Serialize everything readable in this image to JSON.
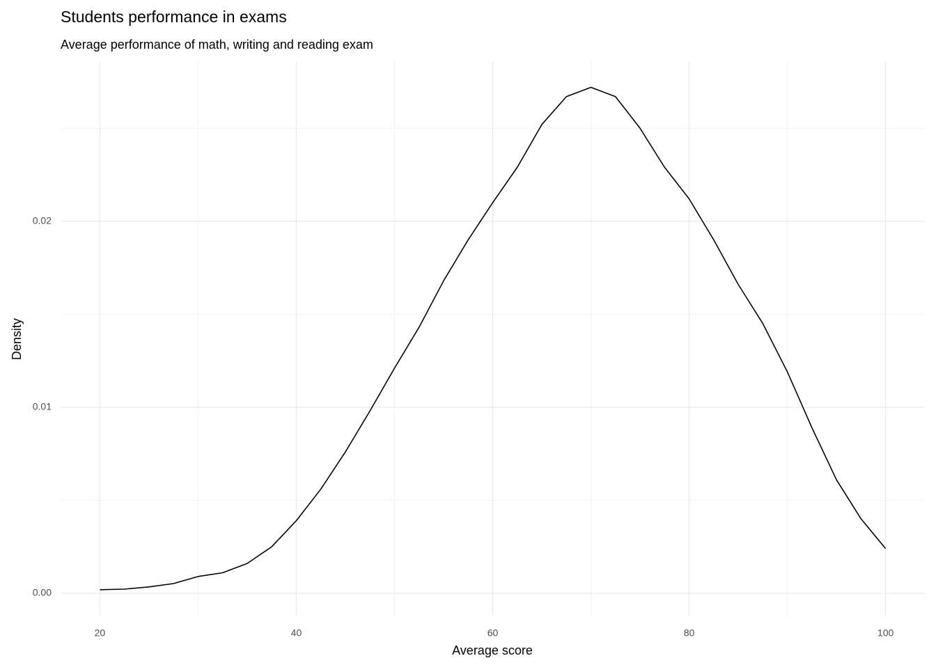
{
  "chart_data": {
    "type": "line",
    "title": "Students performance in exams",
    "subtitle": "Average performance of math, writing and reading exam",
    "x_label": "Average score",
    "y_label": "Density",
    "x": [
      20,
      22.5,
      25,
      27.5,
      30,
      32.5,
      35,
      37.5,
      40,
      42.5,
      45,
      47.5,
      50,
      52.5,
      55,
      57.5,
      60,
      62.5,
      65,
      67.5,
      70,
      72.5,
      75,
      77.5,
      80,
      82.5,
      85,
      87.5,
      90,
      92.5,
      95,
      97.5,
      100
    ],
    "series": [
      {
        "color": "#000000",
        "values": [
          0.00019,
          0.00022,
          0.00034,
          0.00052,
          0.0009,
          0.0011,
          0.0016,
          0.0025,
          0.0039,
          0.0056,
          0.0076,
          0.0098,
          0.0121,
          0.0143,
          0.0168,
          0.019,
          0.021,
          0.0229,
          0.0252,
          0.0267,
          0.0272,
          0.0267,
          0.025,
          0.0229,
          0.0212,
          0.019,
          0.0166,
          0.0145,
          0.0119,
          0.0089,
          0.0061,
          0.004,
          0.0024
        ]
      }
    ],
    "xlim": [
      16,
      104
    ],
    "ylim": [
      -0.00124,
      0.0286
    ],
    "xticks": [
      20,
      40,
      60,
      80,
      100
    ],
    "yticks": [
      {
        "value": 0,
        "label": "0.00"
      },
      0.01,
      0.02
    ],
    "x_minor_grid": [
      30,
      50,
      70,
      90
    ],
    "y_minor_grid": [
      0.005,
      0.015,
      0.025
    ],
    "grid": true
  }
}
